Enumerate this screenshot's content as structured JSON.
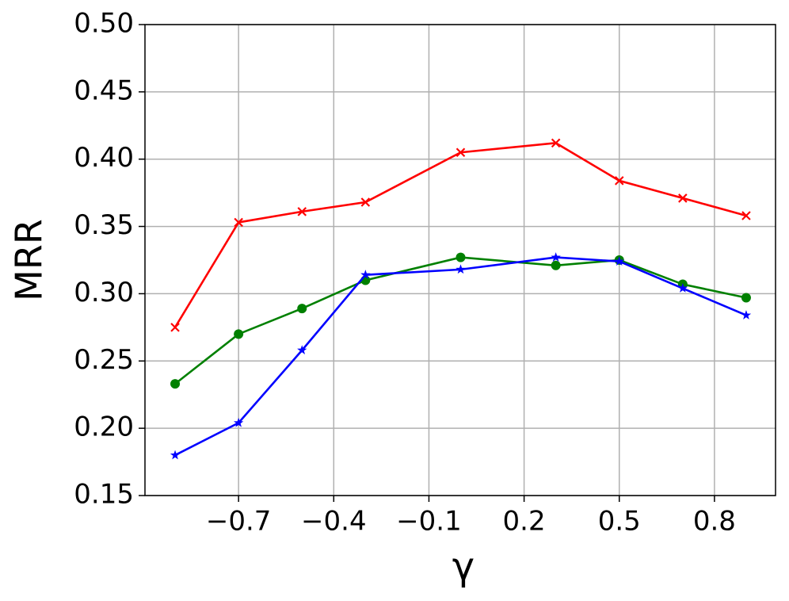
{
  "chart_data": {
    "type": "line",
    "x_label": "γ",
    "y_label": "MRR",
    "x": [
      -0.9,
      -0.7,
      -0.5,
      -0.3,
      0.0,
      0.3,
      0.5,
      0.7,
      0.9
    ],
    "series": [
      {
        "color": "#ff0000",
        "marker": "x",
        "values": [
          0.275,
          0.353,
          0.361,
          0.368,
          0.405,
          0.412,
          0.384,
          0.371,
          0.358
        ]
      },
      {
        "color": "#008000",
        "marker": "circle",
        "values": [
          0.233,
          0.27,
          0.289,
          0.31,
          0.327,
          0.321,
          0.325,
          0.307,
          0.297
        ]
      },
      {
        "color": "#0000ff",
        "marker": "star",
        "values": [
          0.18,
          0.204,
          0.258,
          0.314,
          0.318,
          0.327,
          0.324,
          0.304,
          0.284
        ]
      }
    ],
    "xlim": [
      -0.995,
      0.9925
    ],
    "xticks": [
      {
        "value": -0.7,
        "label": "−0.7"
      },
      {
        "value": -0.4,
        "label": "−0.4"
      },
      {
        "value": -0.1,
        "label": "−0.1"
      },
      0.2,
      0.5,
      0.8
    ],
    "ylim": [
      0.15,
      0.5
    ],
    "yticks": [
      0.15,
      {
        "value": 0.2,
        "label": "0.20"
      },
      0.25,
      {
        "value": 0.3,
        "label": "0.30"
      },
      0.35,
      {
        "value": 0.4,
        "label": "0.40"
      },
      0.45,
      {
        "value": 0.5,
        "label": "0.50"
      }
    ],
    "grid": true
  }
}
